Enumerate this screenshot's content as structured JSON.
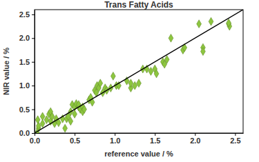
{
  "chart_data": {
    "type": "scatter",
    "title": "Trans Fatty Acids",
    "x_label": "reference value / %",
    "y_label": "NIR value / %",
    "xlim": [
      0,
      2.6
    ],
    "ylim": [
      0,
      2.6
    ],
    "xticks": [
      {
        "value": 0,
        "label": "0.0"
      },
      {
        "value": 0.5,
        "label": "0.5"
      },
      {
        "value": 1,
        "label": "1.0"
      },
      {
        "value": 1.5,
        "label": "1.5"
      },
      {
        "value": 2,
        "label": "2.0"
      },
      {
        "value": 2.5,
        "label": "2.5"
      }
    ],
    "yticks": [
      {
        "value": 0,
        "label": "0.0"
      },
      {
        "value": 0.5,
        "label": "0.5"
      },
      {
        "value": 1,
        "label": "1.0"
      },
      {
        "value": 1.5,
        "label": "1.5"
      },
      {
        "value": 2,
        "label": "2.0"
      },
      {
        "value": 2.5,
        "label": "2.5"
      }
    ],
    "grid": false,
    "series": [
      {
        "type": "scatter",
        "marker": "diamond",
        "color": "#8dc63f",
        "x": [
          0.03,
          0.05,
          0.05,
          0.04,
          0.1,
          0.1,
          0.15,
          0.18,
          0.2,
          0.2,
          0.22,
          0.25,
          0.27,
          0.3,
          0.35,
          0.38,
          0.4,
          0.42,
          0.45,
          0.45,
          0.47,
          0.5,
          0.5,
          0.52,
          0.55,
          0.55,
          0.57,
          0.6,
          0.6,
          0.62,
          0.68,
          0.7,
          0.72,
          0.75,
          0.77,
          0.78,
          0.8,
          0.82,
          0.85,
          0.88,
          0.9,
          0.95,
          0.98,
          1.02,
          1.05,
          1.15,
          1.2,
          1.2,
          1.25,
          1.3,
          1.35,
          1.4,
          1.45,
          1.5,
          1.52,
          1.6,
          1.62,
          1.65,
          1.7,
          1.85,
          1.87,
          2.05,
          2.1,
          2.1,
          2.2,
          2.42,
          2.43,
          2.42
        ],
        "values": [
          0.0,
          0.1,
          0.15,
          0.28,
          0.35,
          0.2,
          0.28,
          0.4,
          0.45,
          0.25,
          0.35,
          0.2,
          0.3,
          0.22,
          0.3,
          0.1,
          0.3,
          0.35,
          0.45,
          0.25,
          0.6,
          0.55,
          0.4,
          0.62,
          0.55,
          0.6,
          0.5,
          0.55,
          0.45,
          0.5,
          0.7,
          0.75,
          0.65,
          0.9,
          0.85,
          1.0,
          0.95,
          1.05,
          0.85,
          0.95,
          0.9,
          0.95,
          1.2,
          1.0,
          1.0,
          1.1,
          0.95,
          1.05,
          1.0,
          1.05,
          1.35,
          1.35,
          1.3,
          1.35,
          1.25,
          1.5,
          1.45,
          1.55,
          2.0,
          1.75,
          1.8,
          2.3,
          1.8,
          1.72,
          2.35,
          2.3,
          2.25,
          2.32
        ]
      },
      {
        "type": "line",
        "line_style": "solid",
        "color": "#000000",
        "x": [
          0,
          2.6
        ],
        "values": [
          0,
          2.6
        ]
      }
    ]
  }
}
